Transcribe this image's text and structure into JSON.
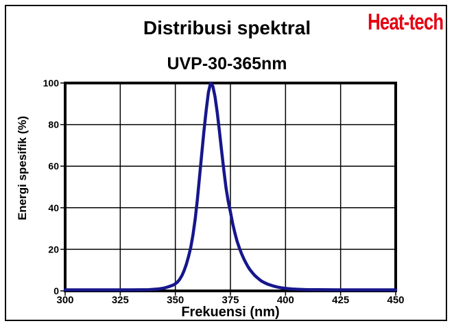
{
  "header": {
    "title": "Distribusi spektral",
    "logo": "Heat-tech",
    "logo_color": "#e60012"
  },
  "chart_data": {
    "type": "line",
    "title": "UVP-30-365nm",
    "xlabel": "Frekuensi (nm)",
    "ylabel": "Energi spesifik (%)",
    "xlim": [
      300,
      450
    ],
    "ylim": [
      0,
      100
    ],
    "x_ticks": [
      300,
      325,
      350,
      375,
      400,
      425,
      450
    ],
    "y_ticks": [
      0,
      20,
      40,
      60,
      80,
      100
    ],
    "grid": true,
    "legend": "none",
    "line_color": "#16168c",
    "axis_color": "#000000",
    "peak_wavelength_nm": 366,
    "peak_value_pct": 100,
    "series": [
      {
        "name": "UVP-30-365nm spectrum",
        "points": [
          [
            300,
            0.5
          ],
          [
            315,
            0.5
          ],
          [
            330,
            0.5
          ],
          [
            338,
            0.6
          ],
          [
            342,
            0.9
          ],
          [
            345,
            1.4
          ],
          [
            347,
            2.0
          ],
          [
            349,
            2.8
          ],
          [
            350,
            3.4
          ],
          [
            351,
            4.3
          ],
          [
            352,
            5.6
          ],
          [
            353,
            7.4
          ],
          [
            354,
            9.8
          ],
          [
            355,
            12.8
          ],
          [
            356,
            16.5
          ],
          [
            357,
            21.0
          ],
          [
            358,
            27.0
          ],
          [
            359,
            34.5
          ],
          [
            360,
            44.0
          ],
          [
            361,
            55.0
          ],
          [
            362,
            66.0
          ],
          [
            363,
            77.0
          ],
          [
            364,
            87.0
          ],
          [
            365,
            95.5
          ],
          [
            366,
            100.0
          ],
          [
            367,
            98.5
          ],
          [
            368,
            93.5
          ],
          [
            369,
            86.0
          ],
          [
            370,
            77.0
          ],
          [
            371,
            67.5
          ],
          [
            372,
            58.0
          ],
          [
            373,
            49.5
          ],
          [
            374,
            43.0
          ],
          [
            375,
            38.0
          ],
          [
            376,
            32.5
          ],
          [
            377,
            28.0
          ],
          [
            378,
            24.0
          ],
          [
            379,
            20.8
          ],
          [
            380,
            18.0
          ],
          [
            381,
            15.6
          ],
          [
            382,
            13.5
          ],
          [
            383,
            11.6
          ],
          [
            384,
            10.0
          ],
          [
            385,
            8.7
          ],
          [
            386,
            7.5
          ],
          [
            387,
            6.5
          ],
          [
            388,
            5.6
          ],
          [
            389,
            4.8
          ],
          [
            390,
            4.2
          ],
          [
            392,
            3.2
          ],
          [
            394,
            2.5
          ],
          [
            396,
            1.9
          ],
          [
            398,
            1.5
          ],
          [
            400,
            1.2
          ],
          [
            403,
            0.9
          ],
          [
            406,
            0.75
          ],
          [
            410,
            0.6
          ],
          [
            415,
            0.55
          ],
          [
            425,
            0.5
          ],
          [
            435,
            0.5
          ],
          [
            450,
            0.5
          ]
        ]
      }
    ]
  }
}
